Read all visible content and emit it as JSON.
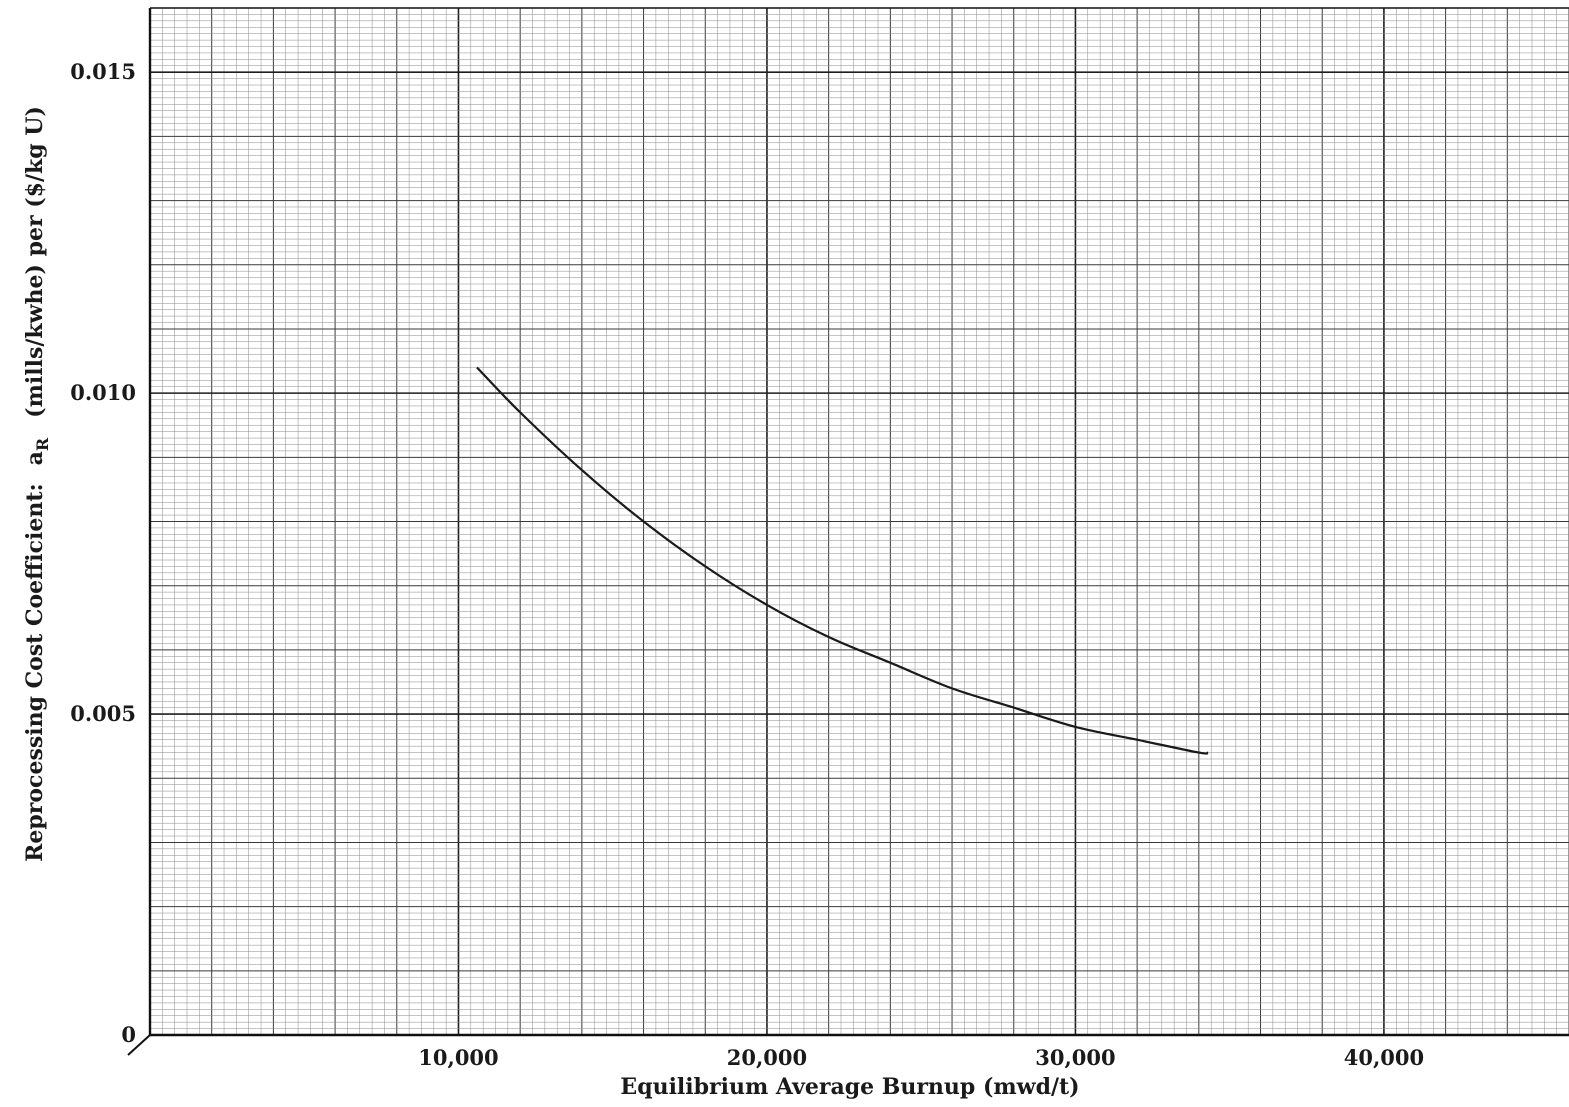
{
  "chart_data": {
    "type": "line",
    "xlabel": "Equilibrium Average Burnup (mwd/t)",
    "ylabel": {
      "prefix": "Reprocessing Cost Coefficient:",
      "symbol": "a",
      "symbol_subscript": "R",
      "suffix": "(mills/kwhe) per ($/kg U)"
    },
    "xlim": [
      0,
      46000
    ],
    "ylim": [
      0,
      0.016
    ],
    "x_ticks": [
      {
        "value": 10000,
        "label": "10,000"
      },
      {
        "value": 20000,
        "label": "20,000"
      },
      {
        "value": 30000,
        "label": "30,000"
      },
      {
        "value": 40000,
        "label": "40,000"
      }
    ],
    "y_ticks": [
      {
        "value": 0,
        "label": "0"
      },
      {
        "value": 0.005,
        "label": "0.005"
      },
      {
        "value": 0.01,
        "label": "0.010"
      },
      {
        "value": 0.015,
        "label": "0.015"
      }
    ],
    "grid": true,
    "series": [
      {
        "x": [
          10600,
          12000,
          14000,
          16000,
          18000,
          20000,
          22000,
          24000,
          26000,
          28000,
          30000,
          32000,
          34000,
          34300
        ],
        "y": [
          0.0104,
          0.0097,
          0.0088,
          0.008,
          0.0073,
          0.0067,
          0.0062,
          0.0058,
          0.0054,
          0.0051,
          0.0048,
          0.0046,
          0.0044,
          0.0044
        ]
      }
    ]
  }
}
